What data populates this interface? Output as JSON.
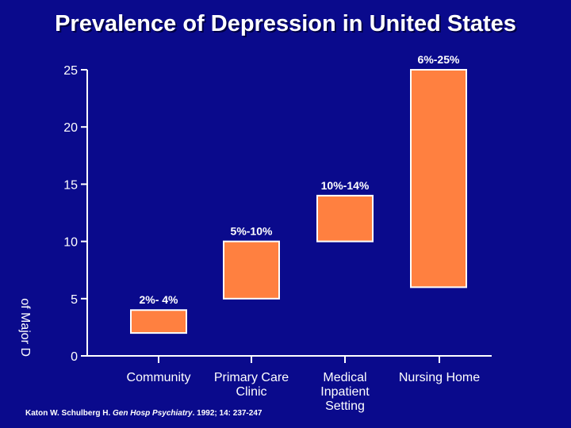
{
  "slide": {
    "title": "Prevalence of Depression in United States",
    "y_title_partial": "of Major D",
    "citation": {
      "authors": "Katon W. Schulberg H.",
      "journal": "Gen Hosp Psychiatry",
      "details": ". 1992; 14: 237-247"
    }
  },
  "colors": {
    "background": "#0a0a8c",
    "bar_fill": "#ff8040",
    "bar_stroke": "#ffffff",
    "axis": "#ffffff",
    "text": "#ffffff"
  },
  "chart_data": {
    "type": "bar",
    "subtype": "floating-range",
    "title": "Prevalence of Depression in United States",
    "xlabel": "",
    "ylabel": "of Major D",
    "ylim": [
      0,
      25
    ],
    "yticks": [
      0,
      5,
      10,
      15,
      20,
      25
    ],
    "grid": false,
    "categories": [
      {
        "lines": [
          "Community"
        ]
      },
      {
        "lines": [
          "Primary Care",
          "Clinic"
        ]
      },
      {
        "lines": [
          "Medical",
          "Inpatient",
          "Setting"
        ]
      },
      {
        "lines": [
          "Nursing Home"
        ]
      }
    ],
    "ranges": [
      {
        "low": 2,
        "high": 4,
        "label": "2%- 4%"
      },
      {
        "low": 5,
        "high": 10,
        "label": "5%-10%"
      },
      {
        "low": 10,
        "high": 14,
        "label": "10%-14%"
      },
      {
        "low": 6,
        "high": 25,
        "label": "6%-25%"
      }
    ]
  }
}
